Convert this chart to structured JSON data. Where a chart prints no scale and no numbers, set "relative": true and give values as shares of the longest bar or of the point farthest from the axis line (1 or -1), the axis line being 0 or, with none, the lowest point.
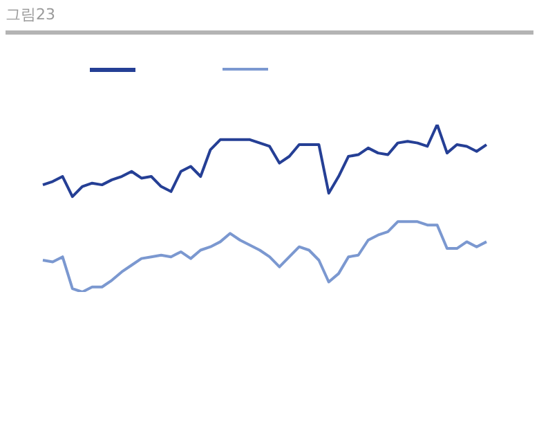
{
  "chart_data": {
    "type": "line",
    "title": "그림23",
    "relative": true,
    "grid": false,
    "marker": "none",
    "line_style": "solid",
    "categories": [
      null,
      null,
      null,
      null,
      null,
      null,
      null,
      null,
      null,
      null,
      null,
      null,
      null,
      null,
      null,
      null,
      null,
      null,
      null,
      null,
      null,
      null,
      null,
      null,
      null,
      null,
      null,
      null,
      null,
      null,
      null,
      null,
      null,
      null,
      null,
      null,
      null,
      null,
      null,
      null,
      null,
      null,
      null,
      null,
      null,
      null
    ],
    "series": [
      {
        "color": "#253f95",
        "values": [
          0.64,
          0.66,
          0.69,
          0.57,
          0.63,
          0.65,
          0.64,
          0.67,
          0.69,
          0.72,
          0.68,
          0.69,
          0.63,
          0.6,
          0.72,
          0.75,
          0.69,
          0.85,
          0.91,
          0.91,
          0.91,
          0.91,
          0.89,
          0.87,
          0.77,
          0.81,
          0.88,
          0.88,
          0.88,
          0.59,
          0.69,
          0.81,
          0.82,
          0.86,
          0.83,
          0.82,
          0.89,
          0.9,
          0.89,
          0.87,
          1,
          0.83,
          0.88,
          0.87,
          0.84,
          0.88
        ]
      },
      {
        "color": "#7b98d0",
        "values": [
          0.19,
          0.18,
          0.21,
          0.02,
          0,
          0.03,
          0.03,
          0.07,
          0.12,
          0.16,
          0.2,
          0.21,
          0.22,
          0.21,
          0.24,
          0.2,
          0.25,
          0.27,
          0.3,
          0.35,
          0.31,
          0.28,
          0.25,
          0.21,
          0.15,
          0.21,
          0.27,
          0.25,
          0.19,
          0.06,
          0.11,
          0.21,
          0.22,
          0.31,
          0.34,
          0.36,
          0.42,
          0.42,
          0.42,
          0.4,
          0.4,
          0.26,
          0.26,
          0.3,
          0.27,
          0.3
        ]
      }
    ]
  }
}
